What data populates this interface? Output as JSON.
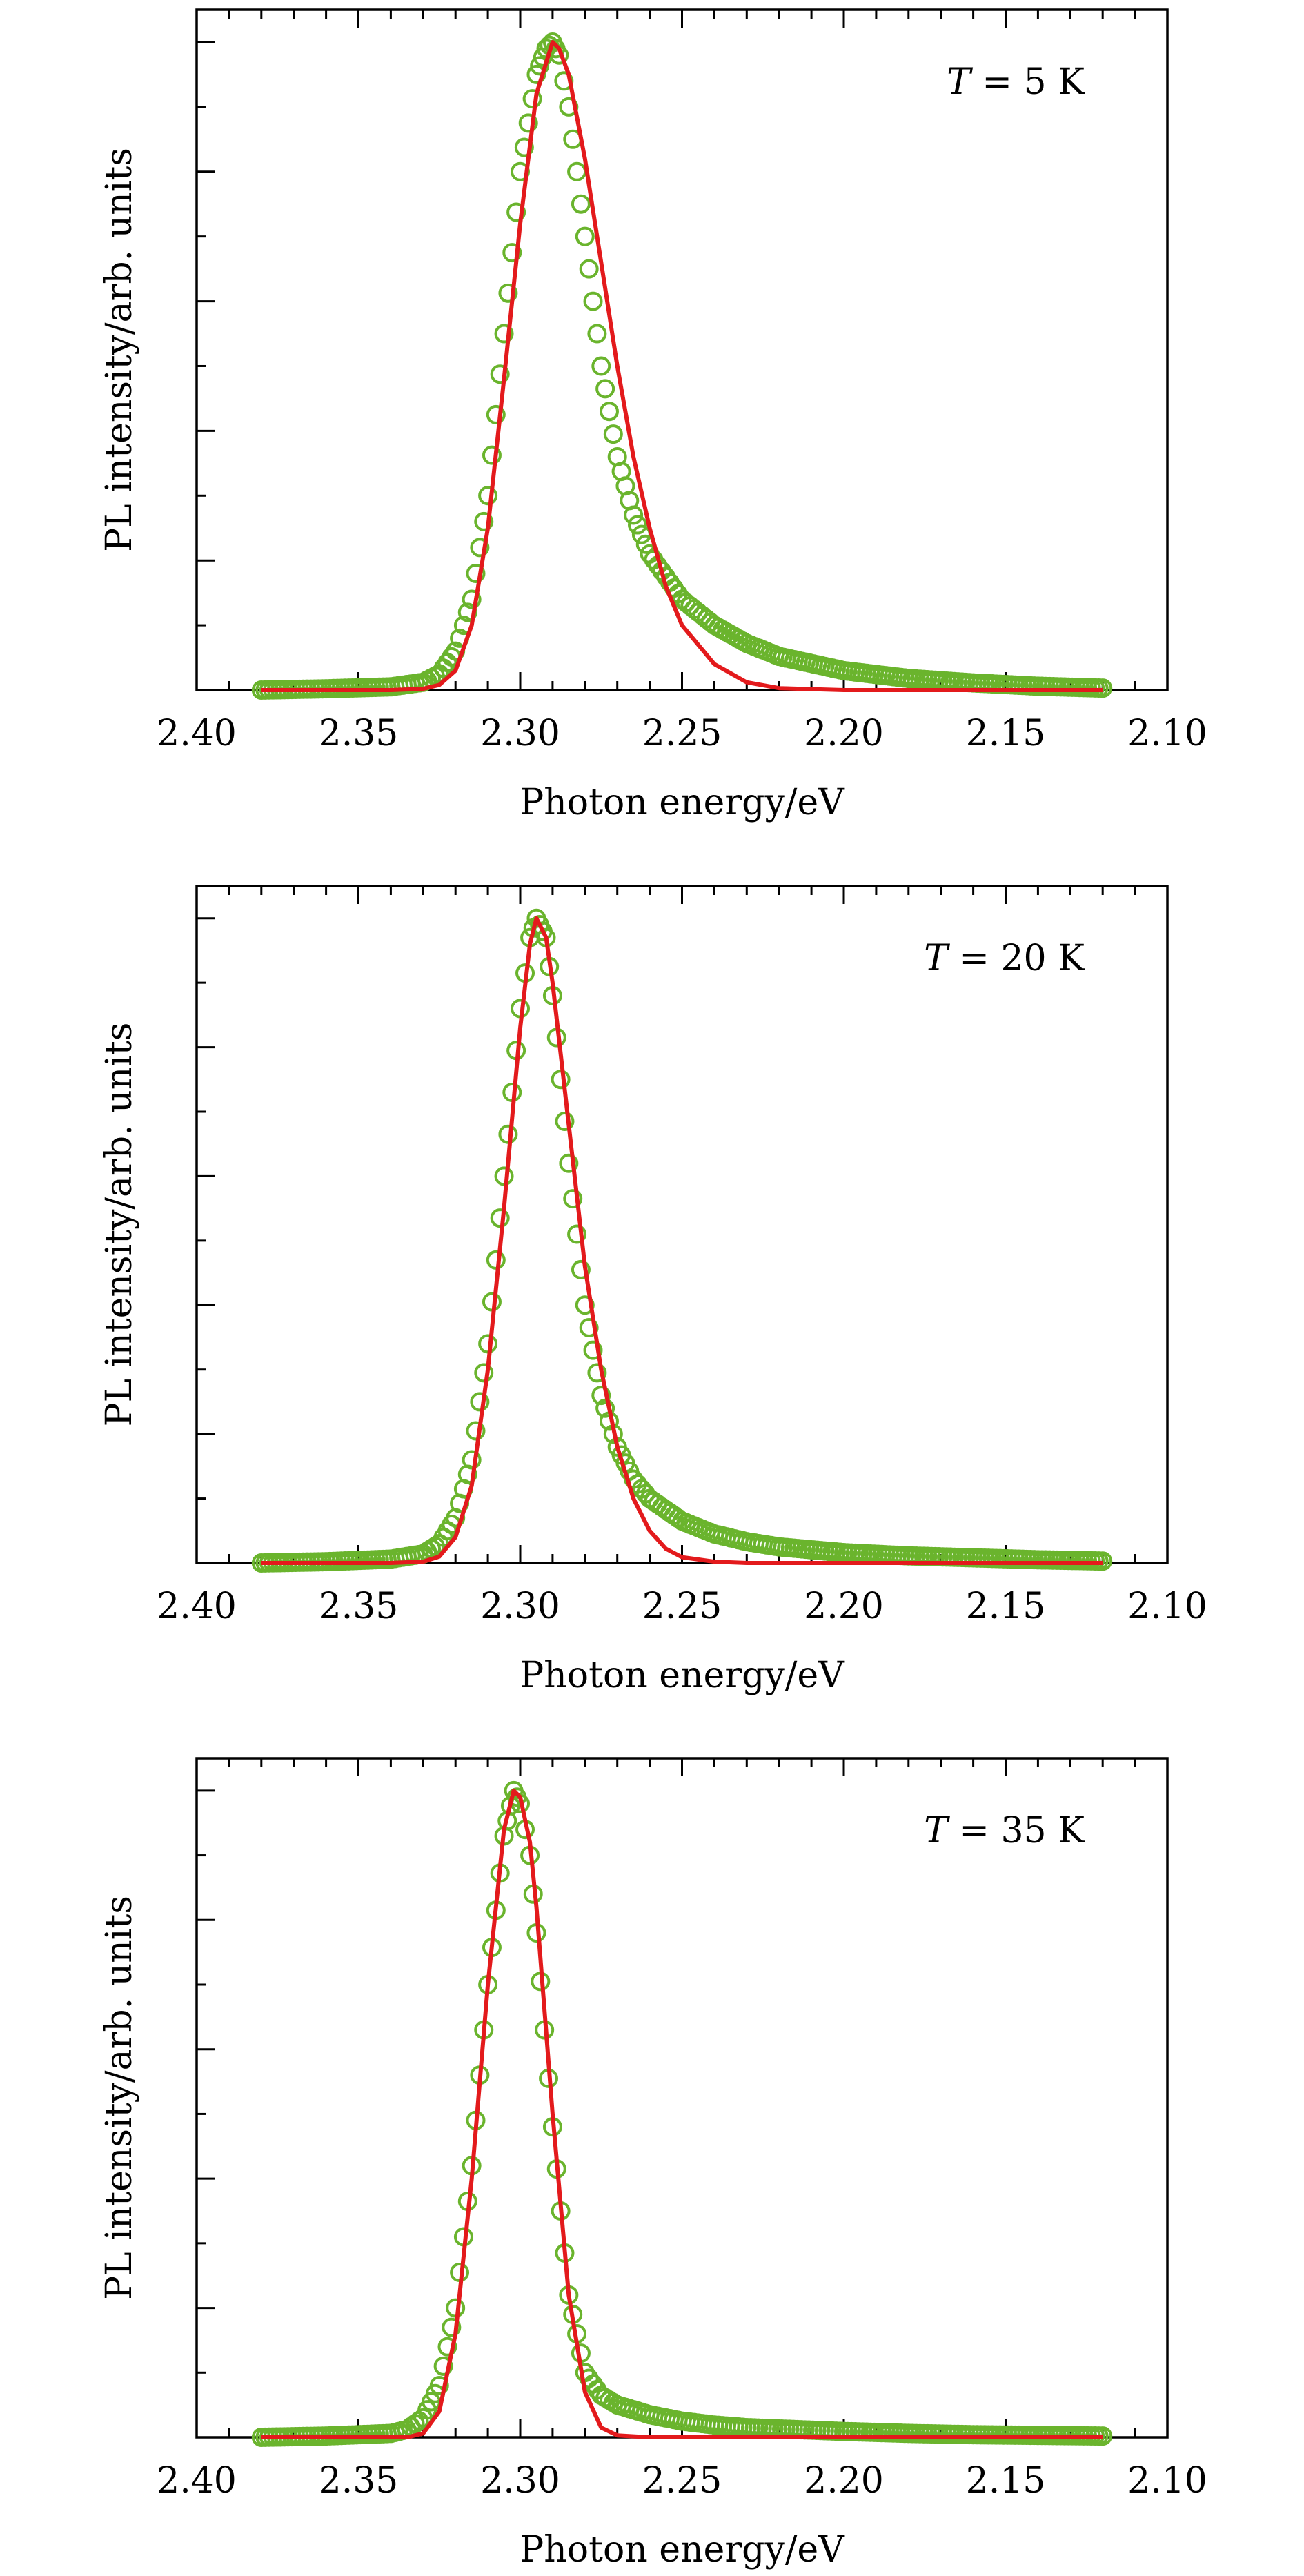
{
  "chart_data": [
    {
      "type": "scatter",
      "title": "",
      "annotation": {
        "var": "T",
        "rest": " = 5 K"
      },
      "xlabel": "Photon energy/eV",
      "ylabel": "PL intensity/arb. units",
      "xlim": [
        2.4,
        2.1
      ],
      "ylim": [
        0,
        1.05
      ],
      "x_reversed": true,
      "xticks": [
        "2.40",
        "2.35",
        "2.30",
        "2.25",
        "2.20",
        "2.15",
        "2.10"
      ],
      "yticks_labeled": false,
      "grid": false,
      "series": [
        {
          "type": "scatter",
          "marker": "open-circle",
          "color": "#6ab42d",
          "x": [
            2.38,
            2.36,
            2.34,
            2.33,
            2.325,
            2.32,
            2.315,
            2.31,
            2.305,
            2.3,
            2.295,
            2.292,
            2.29,
            2.288,
            2.285,
            2.28,
            2.275,
            2.27,
            2.265,
            2.26,
            2.25,
            2.24,
            2.23,
            2.22,
            2.2,
            2.18,
            2.16,
            2.14,
            2.12
          ],
          "y": [
            0.0,
            0.002,
            0.005,
            0.012,
            0.025,
            0.06,
            0.14,
            0.3,
            0.55,
            0.8,
            0.95,
            0.99,
            1.0,
            0.98,
            0.9,
            0.7,
            0.5,
            0.36,
            0.27,
            0.21,
            0.14,
            0.1,
            0.072,
            0.052,
            0.03,
            0.018,
            0.011,
            0.006,
            0.003
          ]
        },
        {
          "type": "line",
          "color": "#e31a1c",
          "x": [
            2.38,
            2.34,
            2.33,
            2.325,
            2.32,
            2.315,
            2.31,
            2.305,
            2.3,
            2.295,
            2.29,
            2.288,
            2.285,
            2.28,
            2.275,
            2.27,
            2.265,
            2.26,
            2.255,
            2.25,
            2.24,
            2.23,
            2.22,
            2.2,
            2.15,
            2.12
          ],
          "y": [
            0.0,
            0.0,
            0.002,
            0.008,
            0.03,
            0.1,
            0.25,
            0.48,
            0.72,
            0.92,
            1.0,
            0.99,
            0.95,
            0.82,
            0.66,
            0.5,
            0.36,
            0.25,
            0.16,
            0.1,
            0.04,
            0.012,
            0.003,
            0.0,
            0.0,
            0.0
          ]
        }
      ]
    },
    {
      "type": "scatter",
      "title": "",
      "annotation": {
        "var": "T",
        "rest": " = 20 K"
      },
      "xlabel": "Photon energy/eV",
      "ylabel": "PL intensity/arb. units",
      "xlim": [
        2.4,
        2.1
      ],
      "ylim": [
        0,
        1.05
      ],
      "x_reversed": true,
      "xticks": [
        "2.40",
        "2.35",
        "2.30",
        "2.25",
        "2.20",
        "2.15",
        "2.10"
      ],
      "yticks_labeled": false,
      "grid": false,
      "series": [
        {
          "type": "scatter",
          "marker": "open-circle",
          "color": "#6ab42d",
          "x": [
            2.38,
            2.36,
            2.34,
            2.33,
            2.325,
            2.32,
            2.315,
            2.31,
            2.305,
            2.3,
            2.297,
            2.295,
            2.292,
            2.29,
            2.285,
            2.28,
            2.275,
            2.27,
            2.265,
            2.26,
            2.25,
            2.24,
            2.23,
            2.22,
            2.2,
            2.18,
            2.16,
            2.14,
            2.12
          ],
          "y": [
            0.0,
            0.002,
            0.006,
            0.014,
            0.03,
            0.07,
            0.16,
            0.34,
            0.6,
            0.86,
            0.97,
            1.0,
            0.97,
            0.88,
            0.62,
            0.4,
            0.26,
            0.18,
            0.13,
            0.1,
            0.065,
            0.045,
            0.033,
            0.025,
            0.016,
            0.011,
            0.008,
            0.005,
            0.003
          ]
        },
        {
          "type": "line",
          "color": "#e31a1c",
          "x": [
            2.38,
            2.34,
            2.33,
            2.325,
            2.32,
            2.315,
            2.31,
            2.305,
            2.3,
            2.297,
            2.295,
            2.292,
            2.29,
            2.285,
            2.28,
            2.275,
            2.27,
            2.265,
            2.26,
            2.255,
            2.25,
            2.24,
            2.23,
            2.2,
            2.15,
            2.12
          ],
          "y": [
            0.0,
            0.0,
            0.002,
            0.01,
            0.04,
            0.12,
            0.3,
            0.55,
            0.83,
            0.96,
            1.0,
            0.97,
            0.9,
            0.68,
            0.46,
            0.3,
            0.18,
            0.1,
            0.05,
            0.022,
            0.009,
            0.002,
            0.0,
            0.0,
            0.0,
            0.0
          ]
        }
      ]
    },
    {
      "type": "scatter",
      "title": "",
      "annotation": {
        "var": "T",
        "rest": " = 35 K"
      },
      "xlabel": "Photon energy/eV",
      "ylabel": "PL intensity/arb. units",
      "xlim": [
        2.4,
        2.1
      ],
      "ylim": [
        0,
        1.05
      ],
      "x_reversed": true,
      "xticks": [
        "2.40",
        "2.35",
        "2.30",
        "2.25",
        "2.20",
        "2.15",
        "2.10"
      ],
      "yticks_labeled": false,
      "grid": false,
      "series": [
        {
          "type": "scatter",
          "marker": "open-circle",
          "color": "#6ab42d",
          "x": [
            2.38,
            2.36,
            2.34,
            2.335,
            2.33,
            2.325,
            2.32,
            2.315,
            2.31,
            2.305,
            2.302,
            2.3,
            2.297,
            2.295,
            2.29,
            2.285,
            2.28,
            2.275,
            2.27,
            2.26,
            2.25,
            2.24,
            2.23,
            2.2,
            2.18,
            2.16,
            2.14,
            2.12
          ],
          "y": [
            0.0,
            0.002,
            0.006,
            0.012,
            0.03,
            0.08,
            0.2,
            0.42,
            0.7,
            0.93,
            1.0,
            0.98,
            0.9,
            0.78,
            0.48,
            0.22,
            0.1,
            0.065,
            0.05,
            0.035,
            0.025,
            0.019,
            0.015,
            0.009,
            0.006,
            0.004,
            0.003,
            0.002
          ]
        },
        {
          "type": "line",
          "color": "#e31a1c",
          "x": [
            2.38,
            2.335,
            2.33,
            2.325,
            2.32,
            2.315,
            2.31,
            2.305,
            2.302,
            2.3,
            2.297,
            2.295,
            2.29,
            2.285,
            2.28,
            2.275,
            2.27,
            2.26,
            2.2,
            2.12
          ],
          "y": [
            0.0,
            0.0,
            0.006,
            0.04,
            0.16,
            0.4,
            0.7,
            0.94,
            1.0,
            0.99,
            0.92,
            0.82,
            0.5,
            0.22,
            0.07,
            0.015,
            0.003,
            0.0,
            0.0,
            0.0
          ]
        }
      ]
    }
  ]
}
